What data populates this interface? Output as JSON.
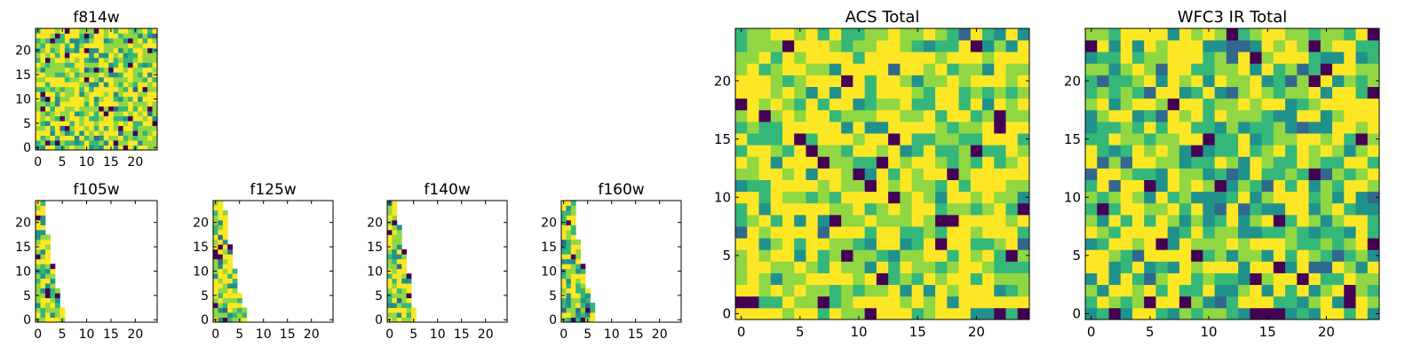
{
  "chart_data": [
    {
      "type": "heatmap",
      "title": "f814w",
      "grid_size": 25,
      "cell_size": 1,
      "xticks": [
        0,
        5,
        10,
        15,
        20
      ],
      "yticks": [
        0,
        5,
        10,
        15,
        20
      ],
      "xlim": [
        -0.5,
        24.5
      ],
      "ylim": [
        -0.5,
        24.5
      ],
      "colormap": [
        "#440154",
        "#31688e",
        "#21918c",
        "#35b779",
        "#90d743",
        "#fde725"
      ],
      "fill_columns": [
        25,
        25,
        25,
        25,
        25,
        25,
        25,
        25,
        25,
        25,
        25,
        25,
        25,
        25,
        25,
        25,
        25,
        25,
        25,
        25,
        25,
        25,
        25,
        25,
        25
      ],
      "seed": 11,
      "value_bias": 0.72
    },
    {
      "type": "heatmap",
      "title": "f105w",
      "grid_size": 25,
      "cell_size": 1,
      "xticks": [
        0,
        5,
        10,
        15,
        20
      ],
      "yticks": [
        0,
        5,
        10,
        15,
        20
      ],
      "xlim": [
        -0.5,
        24.5
      ],
      "ylim": [
        -0.5,
        24.5
      ],
      "colormap": [
        "#440154",
        "#31688e",
        "#21918c",
        "#35b779",
        "#90d743",
        "#fde725"
      ],
      "fill_columns": [
        6,
        6,
        6,
        5,
        5,
        5,
        5,
        4,
        4,
        4,
        4,
        4,
        3,
        3,
        3,
        3,
        3,
        3,
        2,
        2,
        2,
        2,
        2,
        2,
        2
      ],
      "seed": 23,
      "value_bias": 0.7
    },
    {
      "type": "heatmap",
      "title": "f125w",
      "grid_size": 25,
      "cell_size": 1,
      "xticks": [
        0,
        5,
        10,
        15,
        20
      ],
      "yticks": [
        0,
        5,
        10,
        15,
        20
      ],
      "xlim": [
        -0.5,
        24.5
      ],
      "ylim": [
        -0.5,
        24.5
      ],
      "colormap": [
        "#440154",
        "#31688e",
        "#21918c",
        "#35b779",
        "#90d743",
        "#fde725"
      ],
      "fill_columns": [
        7,
        7,
        7,
        6,
        6,
        6,
        5,
        5,
        5,
        5,
        5,
        4,
        4,
        4,
        4,
        4,
        3,
        3,
        3,
        3,
        3,
        3,
        3,
        2,
        2
      ],
      "seed": 37,
      "value_bias": 0.72
    },
    {
      "type": "heatmap",
      "title": "f140w",
      "grid_size": 25,
      "cell_size": 1,
      "xticks": [
        0,
        5,
        10,
        15,
        20
      ],
      "yticks": [
        0,
        5,
        10,
        15,
        20
      ],
      "xlim": [
        -0.5,
        24.5
      ],
      "ylim": [
        -0.5,
        24.5
      ],
      "colormap": [
        "#440154",
        "#31688e",
        "#21918c",
        "#35b779",
        "#90d743",
        "#fde725"
      ],
      "fill_columns": [
        6,
        6,
        6,
        5,
        5,
        5,
        5,
        5,
        5,
        5,
        4,
        4,
        4,
        4,
        4,
        3,
        3,
        3,
        3,
        3,
        2,
        2,
        2,
        2,
        2
      ],
      "seed": 51,
      "value_bias": 0.75
    },
    {
      "type": "heatmap",
      "title": "f160w",
      "grid_size": 25,
      "cell_size": 1,
      "xticks": [
        0,
        5,
        10,
        15,
        20
      ],
      "yticks": [
        0,
        5,
        10,
        15,
        20
      ],
      "xlim": [
        -0.5,
        24.5
      ],
      "ylim": [
        -0.5,
        24.5
      ],
      "colormap": [
        "#440154",
        "#31688e",
        "#21918c",
        "#35b779",
        "#90d743",
        "#fde725"
      ],
      "fill_columns": [
        7,
        7,
        7,
        7,
        6,
        6,
        6,
        5,
        5,
        5,
        5,
        5,
        4,
        4,
        4,
        4,
        4,
        3,
        3,
        3,
        3,
        3,
        3,
        3,
        3
      ],
      "seed": 67,
      "value_bias": 0.7
    },
    {
      "type": "heatmap",
      "title": "ACS Total",
      "grid_size": 25,
      "cell_size": 1,
      "xticks": [
        0,
        5,
        10,
        15,
        20
      ],
      "yticks": [
        0,
        5,
        10,
        15,
        20
      ],
      "xlim": [
        -0.5,
        24.5
      ],
      "ylim": [
        -0.5,
        24.5
      ],
      "colormap": [
        "#440154",
        "#31688e",
        "#21918c",
        "#35b779",
        "#90d743",
        "#fde725"
      ],
      "fill_columns": [
        25,
        25,
        25,
        25,
        25,
        25,
        25,
        25,
        25,
        25,
        25,
        25,
        25,
        25,
        25,
        25,
        25,
        25,
        25,
        25,
        25,
        25,
        25,
        25,
        25
      ],
      "seed": 83,
      "value_bias": 0.8
    },
    {
      "type": "heatmap",
      "title": "WFC3 IR Total",
      "grid_size": 25,
      "cell_size": 1,
      "xticks": [
        0,
        5,
        10,
        15,
        20
      ],
      "yticks": [
        0,
        5,
        10,
        15,
        20
      ],
      "xlim": [
        -0.5,
        24.5
      ],
      "ylim": [
        -0.5,
        24.5
      ],
      "colormap": [
        "#440154",
        "#31688e",
        "#21918c",
        "#35b779",
        "#90d743",
        "#fde725"
      ],
      "fill_columns": [
        25,
        25,
        25,
        25,
        25,
        25,
        25,
        25,
        25,
        25,
        25,
        25,
        25,
        25,
        25,
        25,
        25,
        25,
        25,
        25,
        25,
        25,
        25,
        25,
        25
      ],
      "seed": 97,
      "value_bias": 0.55
    }
  ]
}
